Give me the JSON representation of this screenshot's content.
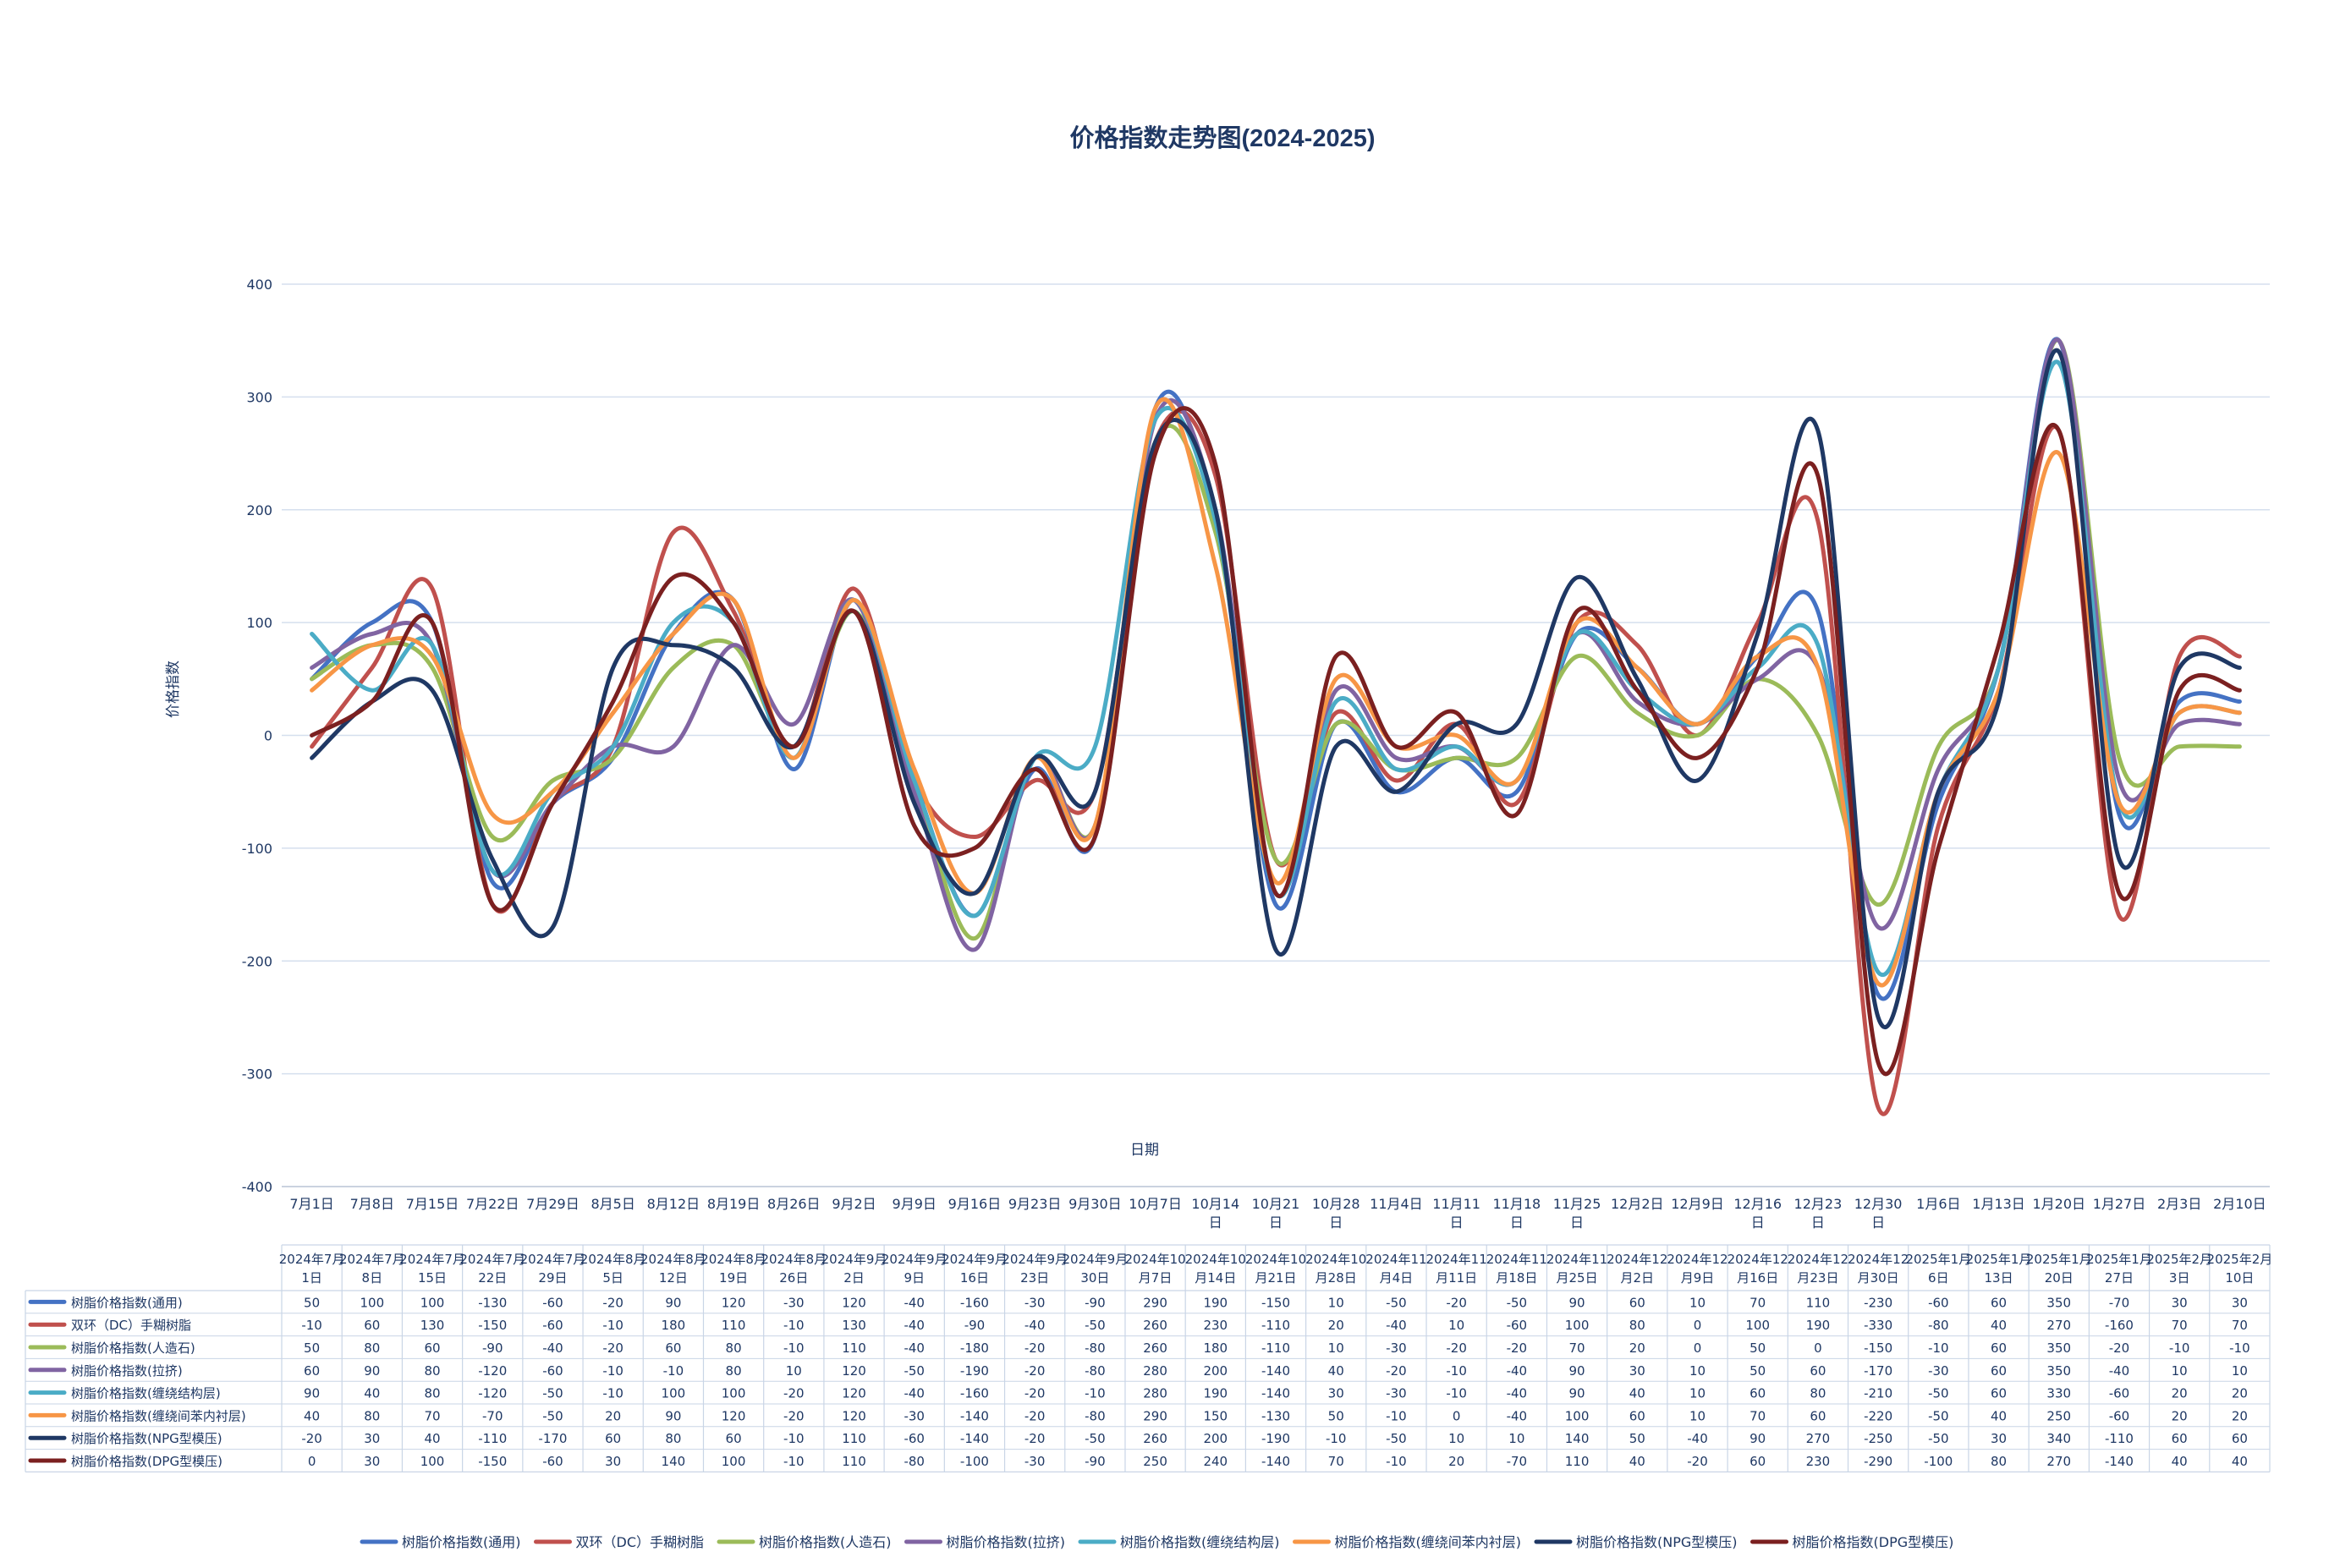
{
  "chart_data": {
    "type": "line",
    "title": "价格指数走势图(2024-2025)",
    "xlabel": "日期",
    "ylabel": "价格指数",
    "ylim": [
      -400,
      400
    ],
    "yticks": [
      -400,
      -300,
      -200,
      -100,
      0,
      100,
      200,
      300,
      400
    ],
    "grid": true,
    "smooth": true,
    "legend_position": "bottom",
    "categories": [
      "7月1日",
      "7月8日",
      "7月15日",
      "7月22日",
      "7月29日",
      "8月5日",
      "8月12日",
      "8月19日",
      "8月26日",
      "9月2日",
      "9月9日",
      "9月16日",
      "9月23日",
      "9月30日",
      "10月7日",
      "10月14日",
      "10月21日",
      "10月28日",
      "11月4日",
      "11月11日",
      "11月18日",
      "11月25日",
      "12月2日",
      "12月9日",
      "12月16日",
      "12月23日",
      "12月30日",
      "1月6日",
      "1月13日",
      "1月20日",
      "1月27日",
      "2月3日",
      "2月10日"
    ],
    "table_categories": [
      "2024年7月1日",
      "2024年7月8日",
      "2024年7月15日",
      "2024年7月22日",
      "2024年7月29日",
      "2024年8月5日",
      "2024年8月12日",
      "2024年8月19日",
      "2024年8月26日",
      "2024年9月2日",
      "2024年9月9日",
      "2024年9月16日",
      "2024年9月23日",
      "2024年9月30日",
      "2024年10月7日",
      "2024年10月14日",
      "2024年10月21日",
      "2024年10月28日",
      "2024年11月4日",
      "2024年11月11日",
      "2024年11月18日",
      "2024年11月25日",
      "2024年12月2日",
      "2024年12月9日",
      "2024年12月16日",
      "2024年12月23日",
      "2024年12月30日",
      "2025年1月6日",
      "2025年1月13日",
      "2025年1月20日",
      "2025年1月27日",
      "2025年2月3日",
      "2025年2月10日"
    ],
    "series": [
      {
        "name": "树脂价格指数(通用)",
        "color": "#4472c4",
        "values": [
          50,
          100,
          100,
          -130,
          -60,
          -20,
          90,
          120,
          -30,
          120,
          -40,
          -160,
          -30,
          -90,
          290,
          190,
          -150,
          10,
          -50,
          -20,
          -50,
          90,
          60,
          10,
          70,
          110,
          -230,
          -60,
          60,
          350,
          -70,
          30,
          30
        ]
      },
      {
        "name": "双环（DC）手糊树脂",
        "color": "#c0504d",
        "values": [
          -10,
          60,
          130,
          -150,
          -60,
          -10,
          180,
          110,
          -10,
          130,
          -40,
          -90,
          -40,
          -50,
          260,
          230,
          -110,
          20,
          -40,
          10,
          -60,
          100,
          80,
          0,
          100,
          190,
          -330,
          -80,
          40,
          270,
          -160,
          70,
          70
        ]
      },
      {
        "name": "树脂价格指数(人造石)",
        "color": "#9bbb59",
        "values": [
          50,
          80,
          60,
          -90,
          -40,
          -20,
          60,
          80,
          -10,
          110,
          -40,
          -180,
          -20,
          -80,
          260,
          180,
          -110,
          10,
          -30,
          -20,
          -20,
          70,
          20,
          0,
          50,
          0,
          -150,
          -10,
          60,
          350,
          -20,
          -10,
          -10
        ]
      },
      {
        "name": "树脂价格指数(拉挤)",
        "color": "#8064a2",
        "values": [
          60,
          90,
          80,
          -120,
          -60,
          -10,
          -10,
          80,
          10,
          120,
          -50,
          -190,
          -20,
          -80,
          280,
          200,
          -140,
          40,
          -20,
          -10,
          -40,
          90,
          30,
          10,
          50,
          60,
          -170,
          -30,
          60,
          350,
          -40,
          10,
          10
        ]
      },
      {
        "name": "树脂价格指数(缠绕结构层)",
        "color": "#4bacc6",
        "values": [
          90,
          40,
          80,
          -120,
          -50,
          -10,
          100,
          100,
          -20,
          120,
          -40,
          -160,
          -20,
          -10,
          280,
          190,
          -140,
          30,
          -30,
          -10,
          -40,
          90,
          40,
          10,
          60,
          80,
          -210,
          -50,
          60,
          330,
          -60,
          20,
          20
        ]
      },
      {
        "name": "树脂价格指数(缠绕间苯内衬层)",
        "color": "#f79646",
        "values": [
          40,
          80,
          70,
          -70,
          -50,
          20,
          90,
          120,
          -20,
          120,
          -30,
          -140,
          -20,
          -80,
          290,
          150,
          -130,
          50,
          -10,
          0,
          -40,
          100,
          60,
          10,
          70,
          60,
          -220,
          -50,
          40,
          250,
          -60,
          20,
          20
        ]
      },
      {
        "name": "树脂价格指数(NPG型模压)",
        "color": "#1f3864",
        "values": [
          -20,
          30,
          40,
          -110,
          -170,
          60,
          80,
          60,
          -10,
          110,
          -60,
          -140,
          -20,
          -50,
          260,
          200,
          -190,
          -10,
          -50,
          10,
          10,
          140,
          50,
          -40,
          90,
          270,
          -250,
          -50,
          30,
          340,
          -110,
          60,
          60
        ]
      },
      {
        "name": "树脂价格指数(DPG型模压)",
        "color": "#7b2020",
        "values": [
          0,
          30,
          100,
          -150,
          -60,
          30,
          140,
          100,
          -10,
          110,
          -80,
          -100,
          -30,
          -90,
          250,
          240,
          -140,
          70,
          -10,
          20,
          -70,
          110,
          40,
          -20,
          60,
          230,
          -290,
          -100,
          80,
          270,
          -140,
          40,
          40
        ]
      }
    ]
  }
}
